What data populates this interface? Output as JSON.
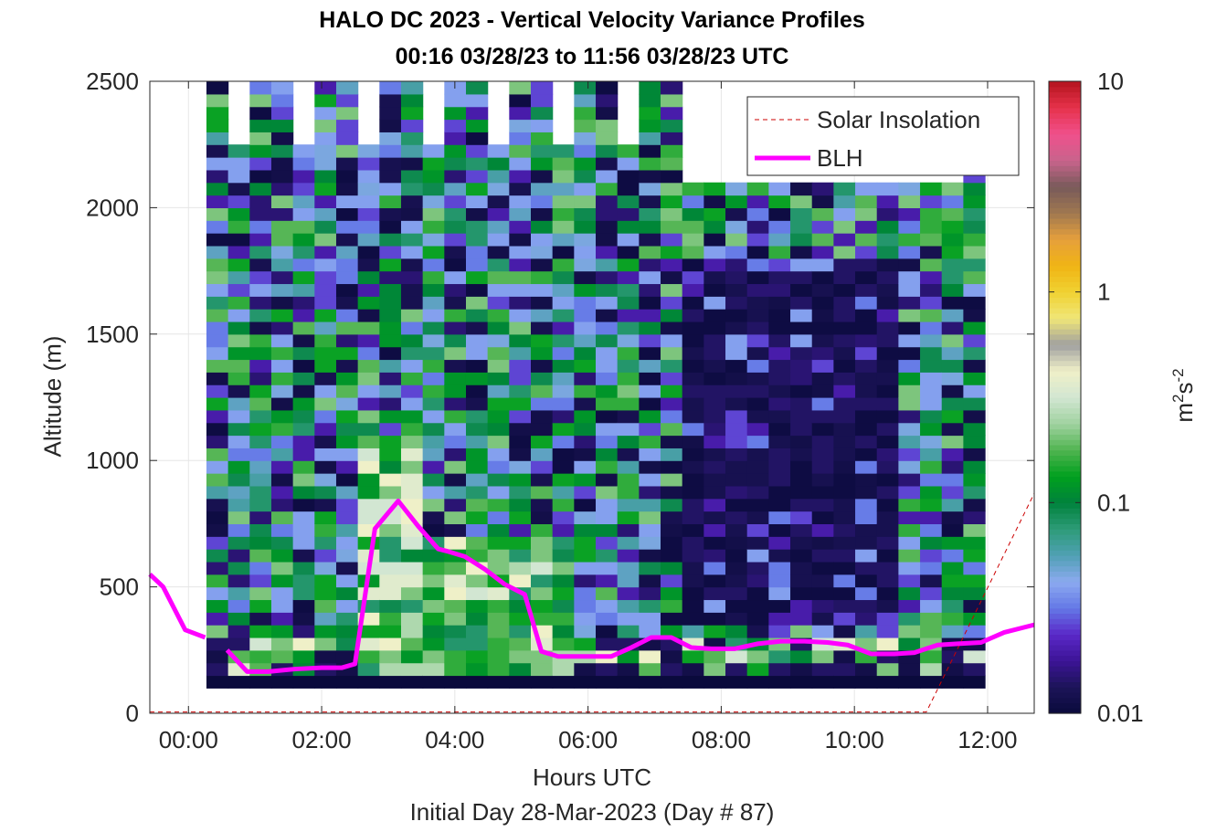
{
  "colors": {
    "blh": "#ff00ff",
    "solar": "#cc0000",
    "grid": "#e6e6e6",
    "axis": "#262626",
    "colormap": [
      "#0a0a3c",
      "#1c1458",
      "#3c1496",
      "#5a28c8",
      "#6478e6",
      "#8caaf0",
      "#50a0b4",
      "#2d9b78",
      "#00823c",
      "#00a01e",
      "#50b450",
      "#a0d2a0",
      "#d2e6d2",
      "#f0f0c8",
      "#a0a0a0",
      "#f0e678",
      "#f0d232",
      "#f0b414",
      "#e6a03c",
      "#a07850",
      "#785a5a",
      "#c8648c",
      "#f0508c",
      "#e6324b",
      "#b4141e"
    ]
  },
  "chart_data": {
    "type": "heatmap",
    "title": "HALO DC 2023 - Vertical Velocity Variance Profiles",
    "subtitle": "00:16 03/28/23 to 11:56 03/28/23  UTC",
    "xlabel": "Hours UTC",
    "xlabel_secondary": "Initial Day 28-Mar-2023 (Day # 87)",
    "ylabel": "Altitude (m)",
    "xlim": [
      -0.58,
      12.7
    ],
    "ylim": [
      0,
      2500
    ],
    "x_ticks": [
      0,
      2,
      4,
      6,
      8,
      10,
      12
    ],
    "x_tick_labels": [
      "00:00",
      "02:00",
      "04:00",
      "06:00",
      "08:00",
      "10:00",
      "12:00"
    ],
    "y_ticks": [
      0,
      500,
      1000,
      1500,
      2000,
      2500
    ],
    "y_tick_labels": [
      "0",
      "500",
      "1000",
      "1500",
      "2000",
      "2500"
    ],
    "grid": true,
    "legend_position": "top-right",
    "colorbar": {
      "label_base": "m",
      "label_sup1": "2",
      "label_mid": "s",
      "label_sup2": "-2",
      "scale": "log",
      "range": [
        0.01,
        10
      ],
      "ticks": [
        0.01,
        0.1,
        1,
        10
      ],
      "tick_labels": [
        "0.01",
        "0.1",
        "1",
        "10"
      ]
    },
    "heatmap": {
      "x_start": 0.27,
      "x_end": 11.96,
      "n_columns": 36,
      "bin_height_m": 50,
      "y_bottom": 100,
      "z_bottom_row": 0.01,
      "max_altitude_first_cols": 2500,
      "max_altitude_late_cols": 2100
    },
    "series": [
      {
        "name": "Solar Insolation",
        "style": "dashed",
        "x": [
          -0.58,
          11.08,
          12.7
        ],
        "y": [
          5,
          5,
          870
        ]
      },
      {
        "name": "BLH",
        "style": "solid",
        "segments": [
          {
            "x": [
              -0.58,
              -0.38,
              -0.05,
              0.25
            ],
            "y": [
              550,
              500,
              330,
              300
            ]
          },
          {
            "x": [
              0.58,
              0.88,
              1.2,
              1.6,
              2.0,
              2.3,
              2.5,
              2.8,
              3.15,
              3.45,
              3.75,
              3.9,
              4.15,
              4.45,
              4.75,
              5.05,
              5.3,
              5.55,
              5.95,
              6.35,
              6.65,
              6.95,
              7.25,
              7.55,
              7.85,
              8.2,
              8.55,
              8.9,
              9.25,
              9.6,
              9.9,
              10.25,
              10.6,
              10.9,
              11.25,
              11.55,
              11.9,
              12.25,
              12.7
            ],
            "y": [
              250,
              165,
              165,
              175,
              180,
              180,
              195,
              730,
              840,
              740,
              650,
              640,
              620,
              570,
              510,
              470,
              245,
              225,
              225,
              225,
              260,
              300,
              300,
              260,
              255,
              255,
              275,
              285,
              285,
              280,
              270,
              235,
              235,
              240,
              270,
              275,
              280,
              320,
              350
            ]
          }
        ]
      }
    ]
  }
}
